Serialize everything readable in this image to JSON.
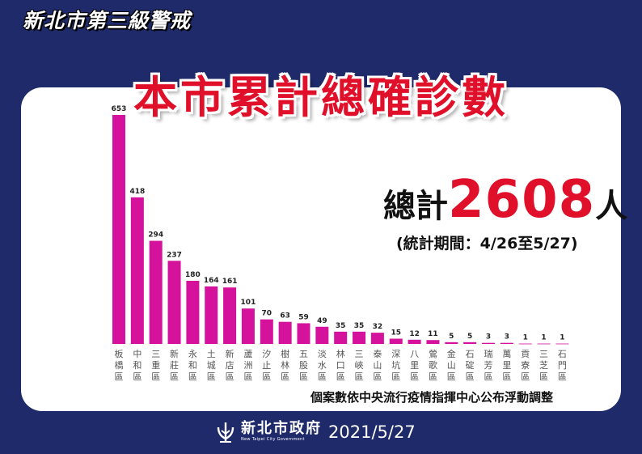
{
  "header": {
    "tag": "新北市第三級警戒"
  },
  "main_title": "本市累計總確診數",
  "total": {
    "label": "總計",
    "value": "2608",
    "unit": "人",
    "period": "(統計期間：4/26至5/27)"
  },
  "footnote": "個案數依中央流行疫情指揮中心公布浮動調整",
  "footer": {
    "org_cn": "新北市政府",
    "org_en": "New Taipei City Government",
    "date": "2021/5/27"
  },
  "colors": {
    "bar": "#d5129b",
    "title": "#e0102a",
    "background": "#1f2a6b",
    "card": "#ffffff"
  },
  "chart_data": {
    "type": "bar",
    "categories": [
      "板橋區",
      "中和區",
      "三重區",
      "新莊區",
      "永和區",
      "土城區",
      "新店區",
      "蘆洲區",
      "汐止區",
      "樹林區",
      "五股區",
      "淡水區",
      "林口區",
      "三峽區",
      "泰山區",
      "深坑區",
      "八里區",
      "鶯歌區",
      "金山區",
      "石碇區",
      "瑞芳區",
      "萬里區",
      "貢寮區",
      "三芝區",
      "石門區"
    ],
    "values": [
      653,
      418,
      294,
      237,
      180,
      164,
      161,
      101,
      70,
      63,
      59,
      49,
      35,
      35,
      32,
      15,
      12,
      11,
      5,
      5,
      3,
      3,
      1,
      1,
      1
    ],
    "ylim": [
      0,
      653
    ],
    "grid": false,
    "data_labels": true
  }
}
